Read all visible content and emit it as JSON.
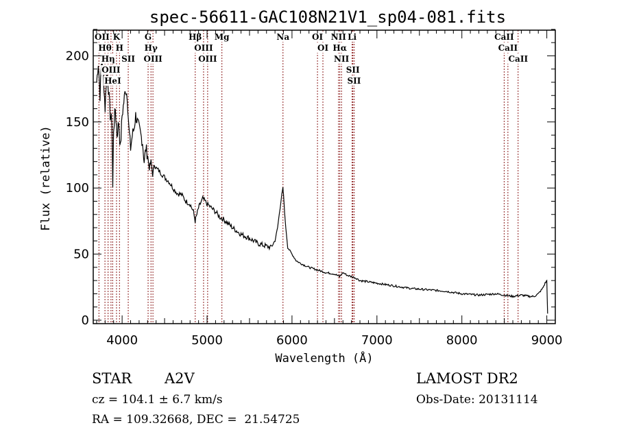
{
  "chart_data": {
    "type": "line",
    "title": "spec-56611-GAC108N21V1_sp04-081.fits",
    "xlabel": "Wavelength (Å)",
    "ylabel": "Flux (relative)",
    "xlim": [
      3660,
      9100
    ],
    "ylim": [
      0,
      222
    ],
    "xticks": [
      4000,
      5000,
      6000,
      7000,
      8000,
      9000
    ],
    "yticks": [
      0,
      50,
      100,
      150,
      200
    ],
    "grid": false,
    "series": [
      {
        "name": "spectrum",
        "color": "#000000",
        "x": [
          3700,
          3720,
          3740,
          3760,
          3780,
          3800,
          3820,
          3840,
          3860,
          3880,
          3890,
          3900,
          3920,
          3940,
          3960,
          3980,
          4000,
          4020,
          4040,
          4060,
          4080,
          4100,
          4120,
          4140,
          4160,
          4180,
          4200,
          4220,
          4240,
          4260,
          4280,
          4300,
          4320,
          4340,
          4360,
          4380,
          4400,
          4450,
          4500,
          4550,
          4600,
          4650,
          4700,
          4750,
          4800,
          4840,
          4860,
          4880,
          4900,
          4920,
          4950,
          5000,
          5050,
          5100,
          5150,
          5200,
          5300,
          5400,
          5500,
          5600,
          5700,
          5750,
          5800,
          5830,
          5860,
          5880,
          5893,
          5900,
          5920,
          5950,
          6000,
          6050,
          6100,
          6200,
          6300,
          6400,
          6500,
          6560,
          6600,
          6650,
          6700,
          6750,
          6800,
          6900,
          7000,
          7200,
          7400,
          7600,
          7800,
          8000,
          8200,
          8400,
          8500,
          8600,
          8700,
          8800,
          8850,
          8900,
          8950,
          8980,
          9000,
          9010
        ],
        "y": [
          180,
          195,
          170,
          200,
          185,
          160,
          190,
          175,
          155,
          150,
          100,
          145,
          160,
          140,
          150,
          130,
          155,
          165,
          175,
          170,
          145,
          130,
          140,
          145,
          155,
          150,
          145,
          140,
          135,
          120,
          130,
          125,
          115,
          120,
          110,
          118,
          115,
          112,
          108,
          105,
          100,
          96,
          95,
          90,
          88,
          82,
          75,
          80,
          85,
          88,
          92,
          88,
          85,
          82,
          78,
          76,
          70,
          65,
          62,
          58,
          56,
          55,
          60,
          70,
          85,
          95,
          100,
          95,
          75,
          55,
          50,
          45,
          43,
          40,
          38,
          36,
          35,
          33,
          36,
          34,
          33,
          32,
          30,
          29,
          28,
          26,
          24,
          23,
          22,
          20,
          19,
          20,
          19,
          18,
          19,
          18,
          18,
          20,
          24,
          28,
          30,
          5
        ]
      }
    ],
    "line_markers": [
      {
        "label": "Hθ",
        "x": 3798
      },
      {
        "label": "OII",
        "x": 3727
      },
      {
        "label": "OIII",
        "x": 3869
      },
      {
        "label": "K",
        "x": 3934
      },
      {
        "label": "HeI",
        "x": 3889
      },
      {
        "label": "Hη",
        "x": 3835
      },
      {
        "label": "SII",
        "x": 4072
      },
      {
        "label": "H",
        "x": 3969
      },
      {
        "label": "G",
        "x": 4306
      },
      {
        "label": "OIII",
        "x": 4363
      },
      {
        "label": "Hγ",
        "x": 4340
      },
      {
        "label": "Hβ",
        "x": 4861
      },
      {
        "label": "OIII",
        "x": 4959
      },
      {
        "label": "OIII",
        "x": 5007
      },
      {
        "label": "Mg",
        "x": 5175
      },
      {
        "label": "Na",
        "x": 5894
      },
      {
        "label": "OI",
        "x": 6364
      },
      {
        "label": "OI",
        "x": 6300
      },
      {
        "label": "NII",
        "x": 6548
      },
      {
        "label": "Hα",
        "x": 6563
      },
      {
        "label": "NII",
        "x": 6583
      },
      {
        "label": "SII",
        "x": 6716
      },
      {
        "label": "SII",
        "x": 6731
      },
      {
        "label": "Li",
        "x": 6708
      },
      {
        "label": "CaII",
        "x": 8662
      },
      {
        "label": "CaII",
        "x": 8542
      },
      {
        "label": "CaII",
        "x": 8498
      }
    ],
    "marker_color": "#8b1a1a"
  },
  "info": {
    "object_type": "STAR",
    "subclass": "A2V",
    "survey": "LAMOST DR2",
    "cz": "cz = 104.1 ± 6.7 km/s",
    "obs_date": "Obs-Date: 20131114",
    "coords": "RA = 109.32668, DEC =  21.54725"
  }
}
